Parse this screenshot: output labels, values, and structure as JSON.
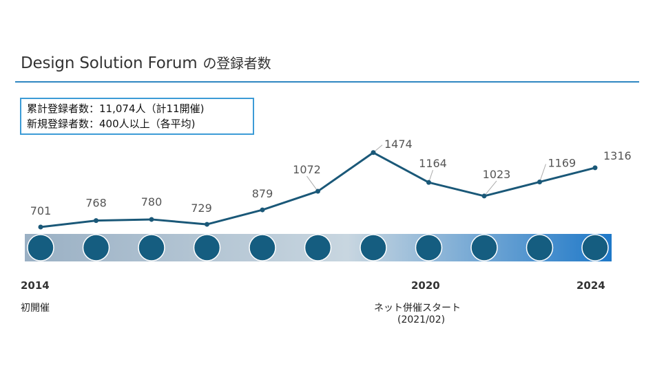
{
  "header": {
    "title": "Design Solution Forum",
    "subtitle": "の登録者数"
  },
  "infobox": {
    "line1": "累計登録者数：11,074人（計11開催)",
    "line2": "新規登録者数：400人以上（各平均)"
  },
  "colors": {
    "line": "#1a5878",
    "circle": "#155d80",
    "rule": "#2e86c1",
    "band_start": "#9ab0c4",
    "band_mid": "#c8d6e0",
    "band_end": "#1e78c8"
  },
  "chart_data": {
    "type": "line",
    "categories": [
      "2014",
      "",
      "",
      "",
      "",
      "",
      "",
      "2020",
      "",
      "",
      "2024"
    ],
    "values": [
      701,
      768,
      780,
      729,
      879,
      1072,
      1474,
      1164,
      1023,
      1169,
      1316
    ],
    "labels": [
      "701",
      "768",
      "780",
      "729",
      "879",
      "1072",
      "1474",
      "1164",
      "1023",
      "1169",
      "1316"
    ],
    "ylim": [
      600,
      1500
    ],
    "grid": false
  },
  "annotations": {
    "year_2014": "2014",
    "year_2020": "2020",
    "year_2024": "2024",
    "first_event": "初開催",
    "hybrid_start": "ネット併催スタート",
    "hybrid_date": "(2021/02)"
  }
}
